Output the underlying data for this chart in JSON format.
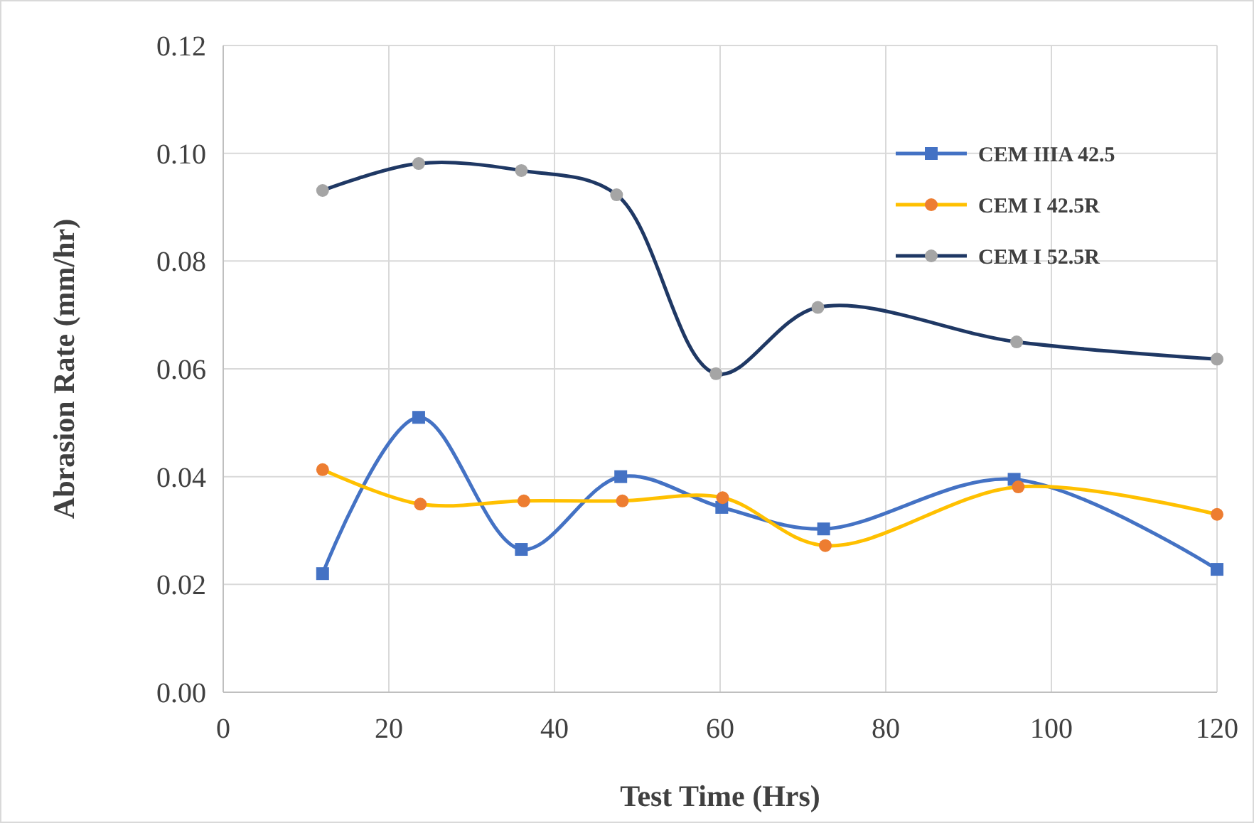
{
  "chart_data": {
    "type": "line",
    "xlabel": "Test Time (Hrs)",
    "ylabel": "Abrasion Rate (mm/hr)",
    "xlim": [
      0,
      120
    ],
    "xticks": [
      0,
      20,
      40,
      60,
      80,
      100,
      120
    ],
    "ylim": [
      0,
      0.12
    ],
    "yticks": [
      {
        "value": 0,
        "label": "0.00"
      },
      {
        "value": 0.02,
        "label": "0.02"
      },
      {
        "value": 0.04,
        "label": "0.04"
      },
      {
        "value": 0.06,
        "label": "0.06"
      },
      {
        "value": 0.08,
        "label": "0.08"
      },
      {
        "value": 0.1,
        "label": "0.10"
      },
      {
        "value": 0.12,
        "label": "0.12"
      }
    ],
    "grid": true,
    "legend": "top right",
    "line_style": "solid",
    "series": [
      {
        "name": "CEM IIIA 42.5",
        "color": "#4472c4",
        "marker": "square",
        "colors": [
          "#4472c4",
          "#4472c4",
          "#4472c4",
          "#4472c4",
          "#4472c4",
          "#4472c4",
          "#4472c4",
          "#4472c4"
        ],
        "x": [
          12,
          23.6,
          36,
          48,
          60.2,
          72.5,
          95.5,
          120
        ],
        "values": [
          0.022,
          0.051,
          0.0265,
          0.04,
          0.0343,
          0.0303,
          0.0395,
          0.0228
        ]
      },
      {
        "name": "CEM I 42.5R",
        "color": "#ffc000",
        "marker": "circle",
        "colors": [
          "#ed7d31",
          "#ed7d31",
          "#ed7d31",
          "#ed7d31",
          "#ed7d31",
          "#ed7d31",
          "#ed7d31",
          "#ed7d31"
        ],
        "x": [
          12,
          23.8,
          36.3,
          48.2,
          60.3,
          72.7,
          96,
          120
        ],
        "values": [
          0.0413,
          0.0349,
          0.0355,
          0.0355,
          0.0361,
          0.0272,
          0.0381,
          0.033
        ]
      },
      {
        "name": "CEM I 52.5R",
        "color": "#1f3864",
        "marker": "circle",
        "colors": [
          "#a5a5a5",
          "#a5a5a5",
          "#a5a5a5",
          "#a5a5a5",
          "#a5a5a5",
          "#a5a5a5",
          "#a5a5a5",
          "#a5a5a5"
        ],
        "x": [
          12,
          23.6,
          36,
          47.5,
          59.5,
          71.8,
          95.8,
          120
        ],
        "values": [
          0.0931,
          0.0981,
          0.0968,
          0.0923,
          0.0591,
          0.0714,
          0.065,
          0.0618
        ]
      }
    ]
  }
}
